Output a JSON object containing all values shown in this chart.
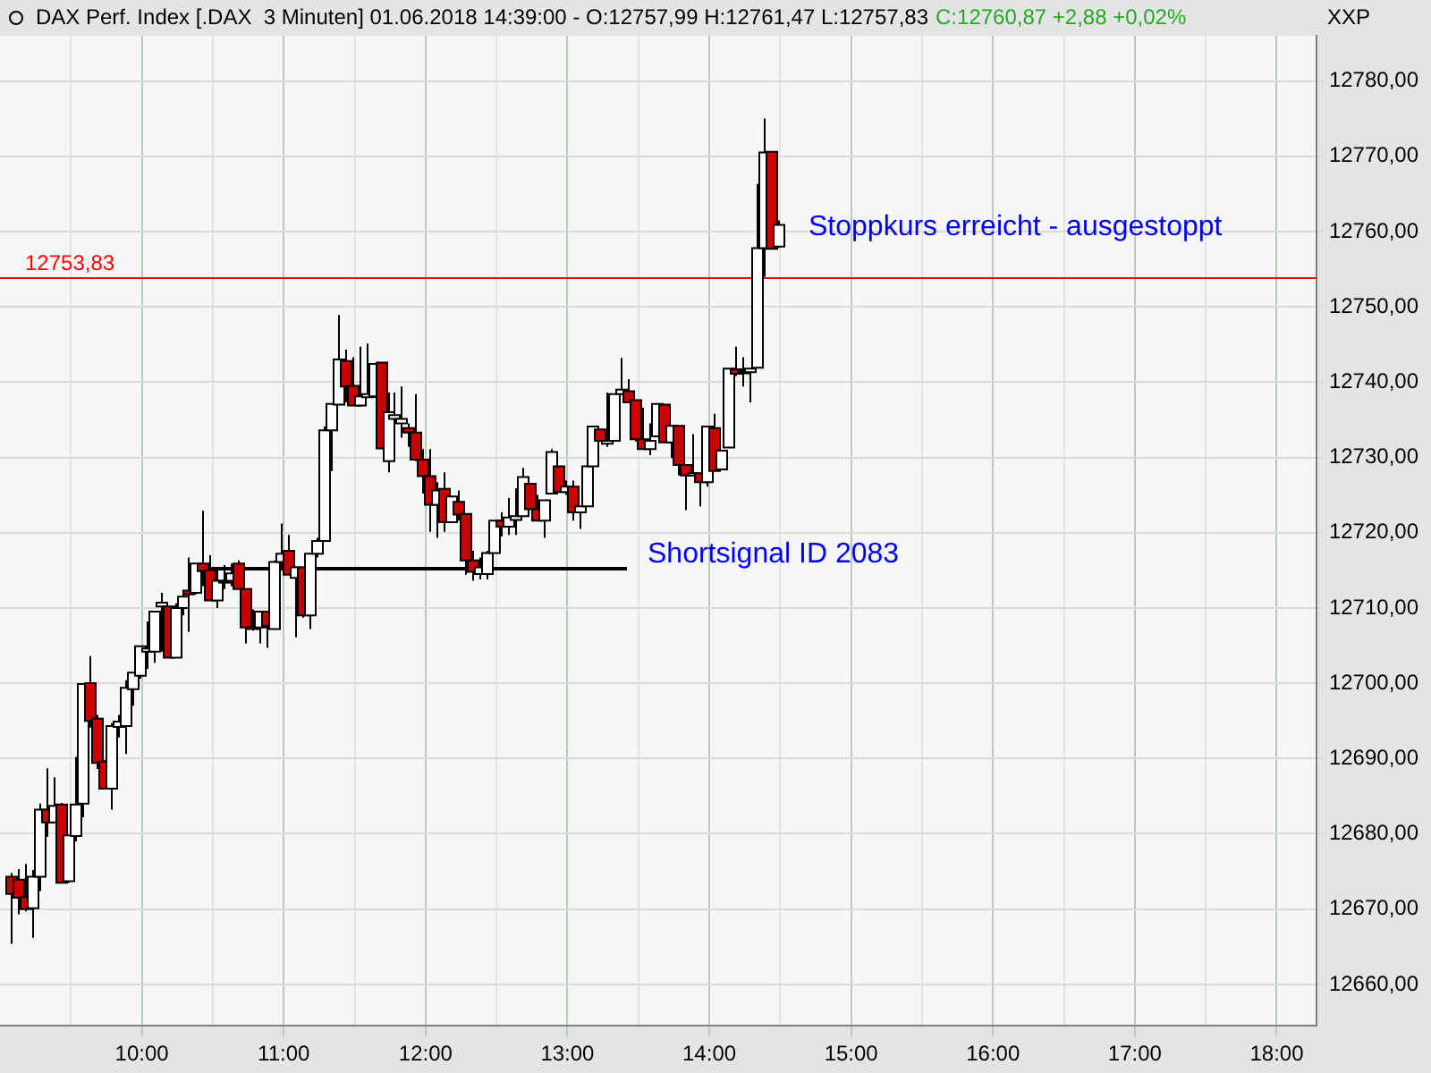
{
  "chart_data": {
    "type": "candlestick",
    "title": "DAX Perf. Index [.DAX  3 Minuten] 01.06.2018 14:39:00 - O:12757,99 H:12761,47 L:12757,83",
    "subtitle": "C:12760,87 +2,88 +0,02%",
    "ylabel": "XXP",
    "x": [
      9.08,
      9.13,
      9.18,
      9.23,
      9.28,
      9.33,
      9.38,
      9.43,
      9.48,
      9.53,
      9.58,
      9.63,
      9.68,
      9.73,
      9.78,
      9.83,
      9.88,
      9.93,
      9.98,
      10.03,
      10.08,
      10.13,
      10.18,
      10.23,
      10.28,
      10.33,
      10.38,
      10.43,
      10.48,
      10.53,
      10.58,
      10.63,
      10.68,
      10.73,
      10.78,
      10.83,
      10.88,
      10.93,
      10.98,
      11.03,
      11.08,
      11.13,
      11.18,
      11.23,
      11.28,
      11.33,
      11.38,
      11.43,
      11.48,
      11.53,
      11.58,
      11.63,
      11.68,
      11.73,
      11.78,
      11.83,
      11.88,
      11.93,
      11.98,
      12.03,
      12.08,
      12.13,
      12.18,
      12.23,
      12.28,
      12.33,
      12.38,
      12.43,
      12.48,
      12.53,
      12.58,
      12.63,
      12.68,
      12.73,
      12.78,
      12.83,
      12.88,
      12.93,
      12.98,
      13.03,
      13.08,
      13.13,
      13.18,
      13.23,
      13.28,
      13.33,
      13.38,
      13.43,
      13.48,
      13.53,
      13.58,
      13.63,
      13.68,
      13.73,
      13.78,
      13.83,
      13.88,
      13.93,
      13.98,
      14.03,
      14.08,
      14.13,
      14.18,
      14.23,
      14.28,
      14.33,
      14.38,
      14.43,
      14.48
    ],
    "ohlc": [
      [
        12674.3,
        12674.8,
        12665.4,
        12672.0
      ],
      [
        12673.9,
        12675.3,
        12669.3,
        12671.5
      ],
      [
        12671.6,
        12676.0,
        12669.7,
        12670.0
      ],
      [
        12670.1,
        12675.2,
        12666.2,
        12674.3
      ],
      [
        12674.3,
        12684.0,
        12672.4,
        12683.2
      ],
      [
        12683.2,
        12688.7,
        12679.6,
        12681.5
      ],
      [
        12681.5,
        12687.5,
        12681.5,
        12683.7
      ],
      [
        12683.9,
        12684.1,
        12673.5,
        12673.5
      ],
      [
        12673.7,
        12679.8,
        12673.5,
        12679.8
      ],
      [
        12679.7,
        12690.2,
        12679.0,
        12683.9
      ],
      [
        12684.0,
        12700.0,
        12682.2,
        12699.9
      ],
      [
        12700.0,
        12703.6,
        12694.1,
        12695.0
      ],
      [
        12695.3,
        12695.8,
        12688.6,
        12689.4
      ],
      [
        12689.6,
        12689.8,
        12686.0,
        12686.0
      ],
      [
        12686.0,
        12694.7,
        12683.2,
        12694.3
      ],
      [
        12694.2,
        12695.8,
        12692.8,
        12694.9
      ],
      [
        12694.3,
        12700.4,
        12690.6,
        12699.4
      ],
      [
        12699.2,
        12701.4,
        12697.0,
        12701.4
      ],
      [
        12701.0,
        12704.9,
        12700.6,
        12704.9
      ],
      [
        12704.2,
        12708.2,
        12701.9,
        12704.6
      ],
      [
        12704.2,
        12709.5,
        12702.7,
        12709.5
      ],
      [
        12710.2,
        12712.0,
        12704.2,
        12710.7
      ],
      [
        12710.2,
        12710.2,
        12703.4,
        12703.4
      ],
      [
        12703.4,
        12710.6,
        12703.4,
        12710.0
      ],
      [
        12710.0,
        12712.4,
        12709.0,
        12711.5
      ],
      [
        12712.3,
        12716.7,
        12706.8,
        12711.8
      ],
      [
        12712.0,
        12715.9,
        12711.8,
        12715.9
      ],
      [
        12715.9,
        12722.9,
        12712.9,
        12714.9
      ],
      [
        12715.0,
        12717.0,
        12711.0,
        12711.0
      ],
      [
        12711.0,
        12715.2,
        12710.0,
        12713.6
      ],
      [
        12713.4,
        12715.7,
        12712.5,
        12713.6
      ],
      [
        12713.6,
        12715.9,
        12712.9,
        12714.6
      ],
      [
        12715.9,
        12716.3,
        12712.5,
        12712.5
      ],
      [
        12712.5,
        12712.5,
        12705.3,
        12707.4
      ],
      [
        12707.5,
        12709.8,
        12707.0,
        12707.2
      ],
      [
        12707.4,
        12709.5,
        12705.3,
        12709.5
      ],
      [
        12709.5,
        12709.5,
        12704.7,
        12707.6
      ],
      [
        12707.2,
        12716.3,
        12707.2,
        12716.1
      ],
      [
        12716.1,
        12721.2,
        12715.2,
        12717.2
      ],
      [
        12717.6,
        12719.7,
        12714.4,
        12714.4
      ],
      [
        12714.0,
        12715.5,
        12706.1,
        12715.4
      ],
      [
        12715.4,
        12715.4,
        12708.7,
        12709.0
      ],
      [
        12709.0,
        12717.2,
        12707.2,
        12717.2
      ],
      [
        12717.2,
        12719.3,
        12716.7,
        12718.9
      ],
      [
        12718.9,
        12734.1,
        12718.9,
        12733.6
      ],
      [
        12733.6,
        12737.1,
        12728.2,
        12737.1
      ],
      [
        12737.0,
        12748.9,
        12737.0,
        12743.0
      ],
      [
        12742.8,
        12744.3,
        12737.3,
        12739.4
      ],
      [
        12739.5,
        12743.3,
        12736.9,
        12736.9
      ],
      [
        12736.9,
        12744.7,
        12736.7,
        12738.1
      ],
      [
        12738.0,
        12745.1,
        12737.9,
        12738.4
      ],
      [
        12738.1,
        12742.4,
        12737.9,
        12742.4
      ],
      [
        12742.6,
        12742.6,
        12731.1,
        12731.2
      ],
      [
        12729.5,
        12738.6,
        12728.0,
        12736.0
      ],
      [
        12735.1,
        12738.6,
        12731.4,
        12735.6
      ],
      [
        12734.5,
        12739.4,
        12732.6,
        12735.1
      ],
      [
        12733.9,
        12734.5,
        12731.4,
        12733.3
      ],
      [
        12733.3,
        12738.4,
        12729.5,
        12729.7
      ],
      [
        12729.7,
        12731.1,
        12725.2,
        12727.5
      ],
      [
        12727.5,
        12731.1,
        12720.1,
        12723.7
      ],
      [
        12723.7,
        12726.7,
        12719.3,
        12725.6
      ],
      [
        12725.8,
        12728.0,
        12720.1,
        12721.4
      ],
      [
        12721.4,
        12724.8,
        12721.4,
        12724.8
      ],
      [
        12724.1,
        12725.6,
        12721.6,
        12722.4
      ],
      [
        12722.5,
        12722.5,
        12714.4,
        12716.3
      ],
      [
        12716.3,
        12717.6,
        12713.6,
        12714.8
      ],
      [
        12714.5,
        12716.7,
        12713.8,
        12715.4
      ],
      [
        12714.5,
        12717.6,
        12713.8,
        12717.3
      ],
      [
        12717.3,
        12721.6,
        12717.3,
        12721.6
      ],
      [
        12721.6,
        12722.7,
        12719.5,
        12720.8
      ],
      [
        12720.8,
        12724.6,
        12719.7,
        12722.0
      ],
      [
        12721.7,
        12725.9,
        12719.7,
        12722.2
      ],
      [
        12722.2,
        12728.6,
        12722.2,
        12727.4
      ],
      [
        12726.5,
        12726.5,
        12723.1,
        12723.1
      ],
      [
        12723.1,
        12725.0,
        12721.6,
        12721.6
      ],
      [
        12721.6,
        12724.3,
        12719.3,
        12724.3
      ],
      [
        12725.2,
        12731.1,
        12725.2,
        12730.7
      ],
      [
        12728.8,
        12728.8,
        12725.4,
        12725.4
      ],
      [
        12725.4,
        12726.9,
        12725.0,
        12726.1
      ],
      [
        12726.1,
        12726.9,
        12721.6,
        12722.7
      ],
      [
        12722.7,
        12723.5,
        12720.5,
        12723.5
      ],
      [
        12723.5,
        12729.7,
        12723.5,
        12728.8
      ],
      [
        12728.8,
        12734.1,
        12728.8,
        12734.1
      ],
      [
        12733.7,
        12733.7,
        12732.2,
        12732.2
      ],
      [
        12731.8,
        12738.6,
        12731.4,
        12732.2
      ],
      [
        12732.2,
        12738.4,
        12732.2,
        12738.4
      ],
      [
        12738.4,
        12743.2,
        12738.3,
        12739.0
      ],
      [
        12738.8,
        12740.4,
        12737.3,
        12737.3
      ],
      [
        12737.6,
        12737.6,
        12732.1,
        12732.4
      ],
      [
        12732.4,
        12736.6,
        12731.1,
        12731.1
      ],
      [
        12731.1,
        12734.5,
        12730.3,
        12732.2
      ],
      [
        12732.8,
        12737.1,
        12732.8,
        12737.1
      ],
      [
        12737.0,
        12737.0,
        12732.0,
        12732.0
      ],
      [
        12732.0,
        12734.2,
        12729.9,
        12734.2
      ],
      [
        12734.2,
        12734.2,
        12727.6,
        12729.0
      ],
      [
        12729.0,
        12729.0,
        12723.0,
        12727.6
      ],
      [
        12727.6,
        12733.1,
        12727.6,
        12727.9
      ],
      [
        12727.9,
        12727.9,
        12723.5,
        12726.7
      ],
      [
        12726.7,
        12734.1,
        12726.1,
        12734.1
      ],
      [
        12733.9,
        12735.8,
        12728.2,
        12728.2
      ],
      [
        12728.4,
        12730.9,
        12728.4,
        12730.9
      ],
      [
        12731.3,
        12741.8,
        12731.3,
        12741.8
      ],
      [
        12741.7,
        12744.7,
        12740.8,
        12741.1
      ],
      [
        12741.3,
        12743.3,
        12739.4,
        12741.4
      ],
      [
        12741.3,
        12741.8,
        12737.3,
        12741.8
      ],
      [
        12741.9,
        12766.3,
        12741.9,
        12757.8
      ],
      [
        12757.8,
        12775.0,
        12754.0,
        12770.5
      ],
      [
        12770.6,
        12770.6,
        12757.7,
        12757.7
      ],
      [
        12757.99,
        12761.47,
        12757.83,
        12760.87
      ]
    ],
    "series": [
      {
        "type": "line",
        "x": [
          10.48,
          13.42
        ],
        "values": [
          12715.2,
          12715.2
        ],
        "color": "#000000"
      }
    ],
    "xlim": [
      9,
      18.28
    ],
    "xticks": [
      {
        "value": 9.5,
        "label": null
      },
      {
        "value": 10,
        "label": "10:00"
      },
      {
        "value": 10.5,
        "label": null
      },
      {
        "value": 11,
        "label": "11:00"
      },
      {
        "value": 11.5,
        "label": null
      },
      {
        "value": 12,
        "label": "12:00"
      },
      {
        "value": 12.5,
        "label": null
      },
      {
        "value": 13,
        "label": "13:00"
      },
      {
        "value": 13.5,
        "label": null
      },
      {
        "value": 14,
        "label": "14:00"
      },
      {
        "value": 14.5,
        "label": null
      },
      {
        "value": 15,
        "label": "15:00"
      },
      {
        "value": 15.5,
        "label": null
      },
      {
        "value": 16,
        "label": "16:00"
      },
      {
        "value": 16.5,
        "label": null
      },
      {
        "value": 17,
        "label": "17:00"
      },
      {
        "value": 17.5,
        "label": null
      },
      {
        "value": 18,
        "label": "18:00"
      }
    ],
    "ylim": [
      12654.5,
      12786
    ],
    "yticks": [
      {
        "value": 12660,
        "label": "12660,00"
      },
      {
        "value": 12670,
        "label": "12670,00"
      },
      {
        "value": 12680,
        "label": "12680,00"
      },
      {
        "value": 12690,
        "label": "12690,00"
      },
      {
        "value": 12700,
        "label": "12700,00"
      },
      {
        "value": 12710,
        "label": "12710,00"
      },
      {
        "value": 12720,
        "label": "12720,00"
      },
      {
        "value": 12730,
        "label": "12730,00"
      },
      {
        "value": 12740,
        "label": "12740,00"
      },
      {
        "value": 12750,
        "label": "12750,00"
      },
      {
        "value": 12760,
        "label": "12760,00"
      },
      {
        "value": 12770,
        "label": "12770,00"
      },
      {
        "value": 12780,
        "label": "12780,00"
      }
    ],
    "grid": true,
    "ref_lines": [
      {
        "axis": "y",
        "value": 12753.83,
        "label": "12753,83",
        "color": "#ff0000"
      }
    ],
    "annotations": [
      "Shortsignal ID 2083",
      "Stoppkurs erreicht - ausgestoppt"
    ]
  }
}
